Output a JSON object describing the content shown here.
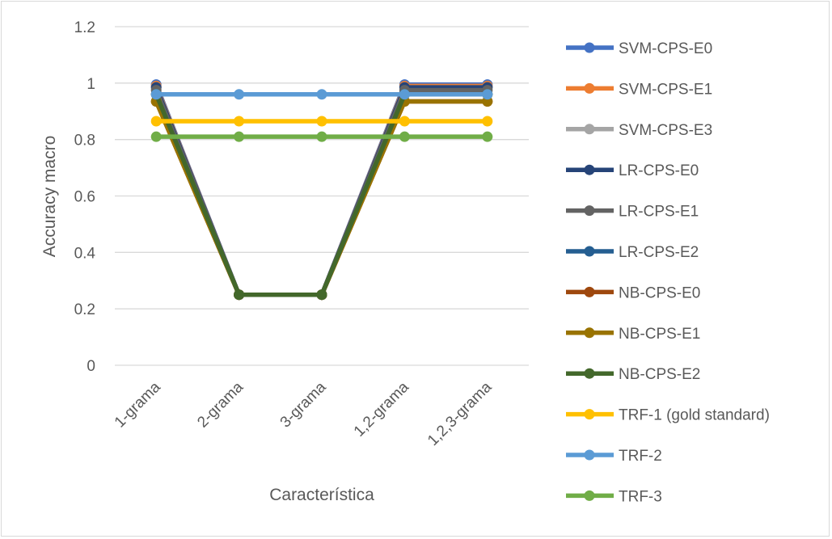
{
  "chart_data": {
    "type": "line",
    "title": "",
    "xlabel": "Característica",
    "ylabel": "Accuracy macro",
    "categories": [
      "1-grama",
      "2-grama",
      "3-grama",
      "1,2-grama",
      "1,2,3-grama"
    ],
    "yticks": [
      "0",
      "0.2",
      "0.4",
      "0.6",
      "0.8",
      "1",
      "1.2"
    ],
    "ylim": [
      0,
      1.2
    ],
    "grid": true,
    "legend_position": "right",
    "series": [
      {
        "name": "SVM-CPS-E0",
        "color": "#4472c4",
        "values": [
          0.995,
          0.25,
          0.25,
          0.995,
          0.995
        ]
      },
      {
        "name": "SVM-CPS-E1",
        "color": "#ed7d31",
        "values": [
          0.99,
          0.25,
          0.25,
          0.99,
          0.99
        ]
      },
      {
        "name": "SVM-CPS-E3",
        "color": "#a5a5a5",
        "values": [
          0.985,
          0.25,
          0.25,
          0.985,
          0.985
        ]
      },
      {
        "name": "LR-CPS-E0",
        "color": "#264478",
        "values": [
          0.985,
          0.25,
          0.25,
          0.985,
          0.985
        ]
      },
      {
        "name": "LR-CPS-E1",
        "color": "#636363",
        "values": [
          0.975,
          0.25,
          0.25,
          0.975,
          0.975
        ]
      },
      {
        "name": "LR-CPS-E2",
        "color": "#255e91",
        "values": [
          0.96,
          0.25,
          0.25,
          0.96,
          0.96
        ]
      },
      {
        "name": "NB-CPS-E0",
        "color": "#9e480e",
        "values": [
          0.935,
          0.25,
          0.25,
          0.935,
          0.935
        ]
      },
      {
        "name": "NB-CPS-E1",
        "color": "#997300",
        "values": [
          0.935,
          0.25,
          0.25,
          0.935,
          0.935
        ]
      },
      {
        "name": "NB-CPS-E2",
        "color": "#43682b",
        "values": [
          0.96,
          0.25,
          0.25,
          0.96,
          0.96
        ]
      },
      {
        "name": "TRF-1 (gold standard)",
        "color": "#ffc000",
        "values": [
          0.865,
          0.865,
          0.865,
          0.865,
          0.865
        ]
      },
      {
        "name": "TRF-2",
        "color": "#5b9bd5",
        "values": [
          0.96,
          0.96,
          0.96,
          0.96,
          0.96
        ]
      },
      {
        "name": "TRF-3",
        "color": "#70ad47",
        "values": [
          0.81,
          0.81,
          0.81,
          0.81,
          0.81
        ]
      }
    ]
  }
}
